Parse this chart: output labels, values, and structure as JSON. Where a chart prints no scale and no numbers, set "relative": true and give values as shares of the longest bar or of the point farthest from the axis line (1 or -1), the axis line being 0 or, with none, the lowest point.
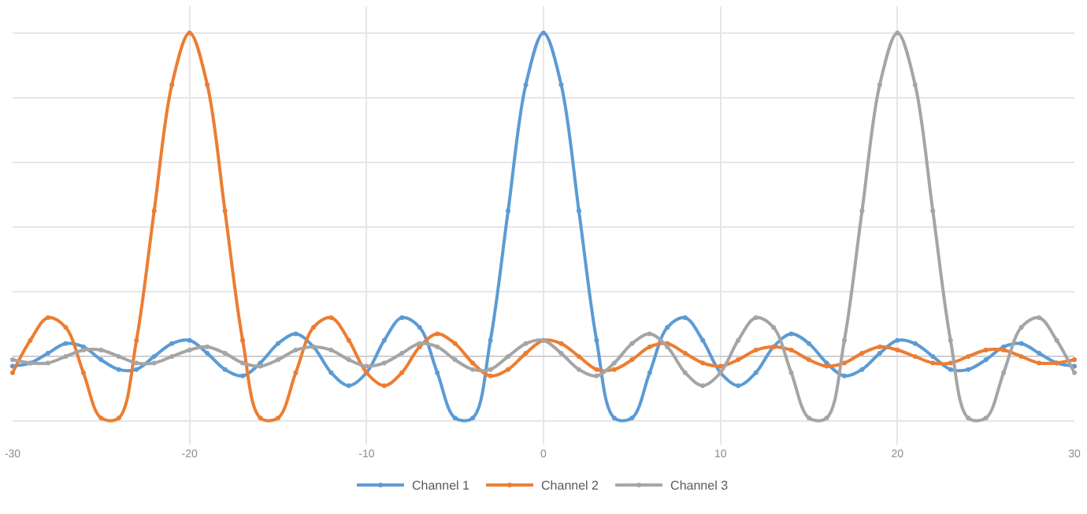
{
  "chart_data": {
    "type": "line",
    "relative": true,
    "x": [
      -30,
      -29,
      -28,
      -27,
      -26,
      -25,
      -24,
      -23,
      -22,
      -21,
      -20,
      -19,
      -18,
      -17,
      -16,
      -15,
      -14,
      -13,
      -12,
      -11,
      -10,
      -9,
      -8,
      -7,
      -6,
      -5,
      -4,
      -3,
      -2,
      -1,
      0,
      1,
      2,
      3,
      4,
      5,
      6,
      7,
      8,
      9,
      10,
      11,
      12,
      13,
      14,
      15,
      16,
      17,
      18,
      19,
      20,
      21,
      22,
      23,
      24,
      25,
      26,
      27,
      28,
      29,
      30
    ],
    "xlim": [
      -30,
      30
    ],
    "xticks": [
      -30,
      -20,
      -10,
      0,
      10,
      20,
      30
    ],
    "series": [
      {
        "name": "Channel 1",
        "color": "#5b9bd5",
        "values": [
          -0.03,
          -0.02,
          0.01,
          0.04,
          0.03,
          -0.01,
          -0.04,
          -0.04,
          0.0,
          0.04,
          0.05,
          0.01,
          -0.04,
          -0.06,
          -0.02,
          0.04,
          0.07,
          0.03,
          -0.05,
          -0.09,
          -0.05,
          0.05,
          0.12,
          0.09,
          -0.05,
          -0.19,
          -0.19,
          0.05,
          0.45,
          0.84,
          1,
          0.84,
          0.45,
          0.05,
          -0.19,
          -0.19,
          -0.05,
          0.09,
          0.12,
          0.05,
          -0.05,
          -0.09,
          -0.05,
          0.03,
          0.07,
          0.04,
          -0.02,
          -0.06,
          -0.04,
          0.01,
          0.05,
          0.04,
          0.0,
          -0.04,
          -0.04,
          -0.01,
          0.03,
          0.04,
          0.01,
          -0.02,
          -0.03
        ]
      },
      {
        "name": "Channel 2",
        "color": "#ed7d31",
        "values": [
          -0.05,
          0.05,
          0.12,
          0.09,
          -0.05,
          -0.19,
          -0.19,
          0.05,
          0.45,
          0.84,
          1,
          0.84,
          0.45,
          0.05,
          -0.19,
          -0.19,
          -0.05,
          0.09,
          0.12,
          0.05,
          -0.05,
          -0.09,
          -0.05,
          0.03,
          0.07,
          0.04,
          -0.02,
          -0.06,
          -0.04,
          0.01,
          0.05,
          0.04,
          0.0,
          -0.04,
          -0.04,
          -0.01,
          0.03,
          0.04,
          0.01,
          -0.02,
          -0.03,
          -0.01,
          0.02,
          0.03,
          0.02,
          -0.01,
          -0.03,
          -0.02,
          0.01,
          0.03,
          0.02,
          0.0,
          -0.02,
          -0.02,
          0.0,
          0.02,
          0.02,
          0.0,
          -0.02,
          -0.02,
          -0.01
        ]
      },
      {
        "name": "Channel 3",
        "color": "#a5a5a5",
        "values": [
          -0.01,
          -0.02,
          -0.02,
          0.0,
          0.02,
          0.02,
          0.0,
          -0.02,
          -0.02,
          0.0,
          0.02,
          0.03,
          0.01,
          -0.02,
          -0.03,
          -0.01,
          0.02,
          0.03,
          0.02,
          -0.01,
          -0.03,
          -0.02,
          0.01,
          0.04,
          0.03,
          -0.01,
          -0.04,
          -0.04,
          0.0,
          0.04,
          0.05,
          0.01,
          -0.04,
          -0.06,
          -0.02,
          0.04,
          0.07,
          0.03,
          -0.05,
          -0.09,
          -0.05,
          0.05,
          0.12,
          0.09,
          -0.05,
          -0.19,
          -0.19,
          0.05,
          0.45,
          0.84,
          1,
          0.84,
          0.45,
          0.05,
          -0.19,
          -0.19,
          -0.05,
          0.09,
          0.12,
          0.05,
          -0.05
        ]
      }
    ],
    "grid": true,
    "legend": "bottom",
    "marker": "circle",
    "line_style": "solid"
  }
}
